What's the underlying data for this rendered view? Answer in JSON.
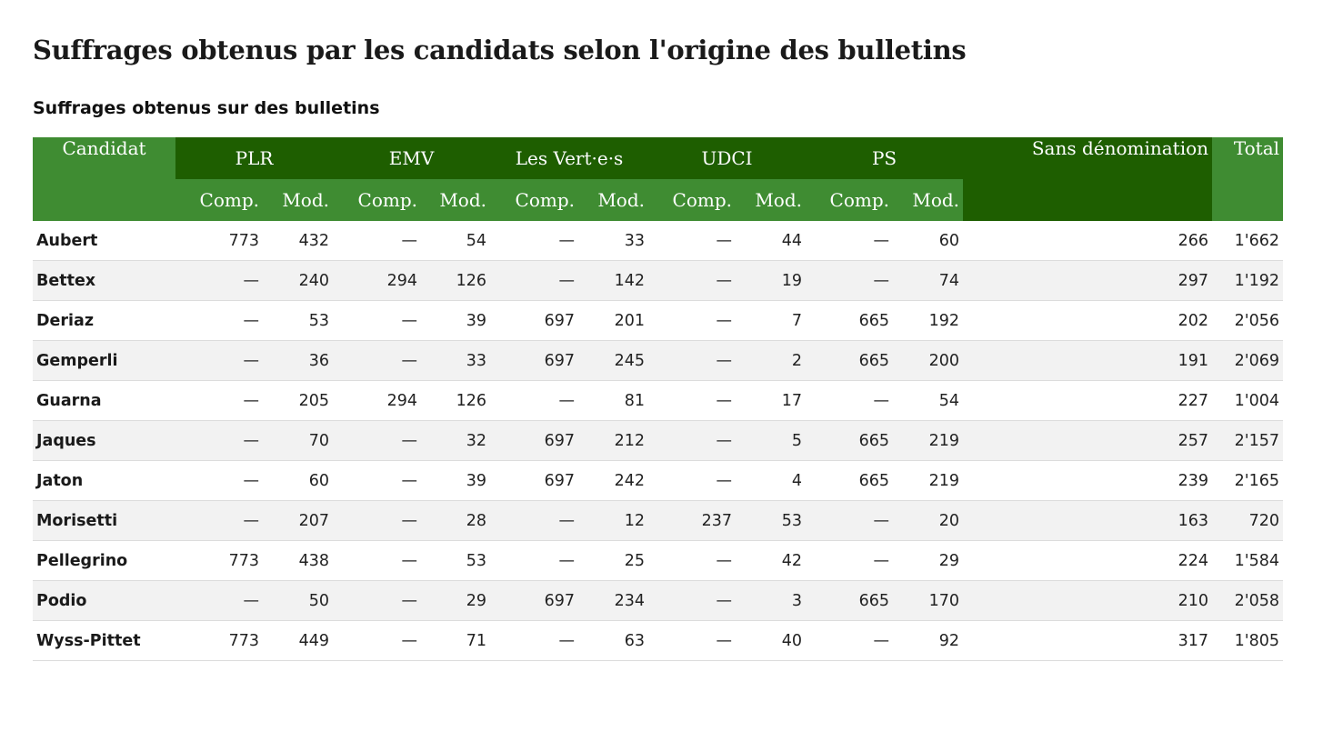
{
  "title": "Suffrages obtenus par les candidats selon l'origine des bulletins",
  "subtitle": "Suffrages obtenus sur des bulletins",
  "headers": {
    "candidat": "Candidat",
    "parties": [
      "PLR",
      "EMV",
      "Les Vert·e·s",
      "UDCI",
      "PS"
    ],
    "sans_denomination": "Sans dénomination",
    "total": "Total",
    "comp": "Comp.",
    "mod": "Mod."
  },
  "rows": [
    {
      "name": "Aubert",
      "cells": [
        "773",
        "432",
        "—",
        "54",
        "—",
        "33",
        "—",
        "44",
        "—",
        "60"
      ],
      "sans": "266",
      "total": "1'662"
    },
    {
      "name": "Bettex",
      "cells": [
        "—",
        "240",
        "294",
        "126",
        "—",
        "142",
        "—",
        "19",
        "—",
        "74"
      ],
      "sans": "297",
      "total": "1'192"
    },
    {
      "name": "Deriaz",
      "cells": [
        "—",
        "53",
        "—",
        "39",
        "697",
        "201",
        "—",
        "7",
        "665",
        "192"
      ],
      "sans": "202",
      "total": "2'056"
    },
    {
      "name": "Gemperli",
      "cells": [
        "—",
        "36",
        "—",
        "33",
        "697",
        "245",
        "—",
        "2",
        "665",
        "200"
      ],
      "sans": "191",
      "total": "2'069"
    },
    {
      "name": "Guarna",
      "cells": [
        "—",
        "205",
        "294",
        "126",
        "—",
        "81",
        "—",
        "17",
        "—",
        "54"
      ],
      "sans": "227",
      "total": "1'004"
    },
    {
      "name": "Jaques",
      "cells": [
        "—",
        "70",
        "—",
        "32",
        "697",
        "212",
        "—",
        "5",
        "665",
        "219"
      ],
      "sans": "257",
      "total": "2'157"
    },
    {
      "name": "Jaton",
      "cells": [
        "—",
        "60",
        "—",
        "39",
        "697",
        "242",
        "—",
        "4",
        "665",
        "219"
      ],
      "sans": "239",
      "total": "2'165"
    },
    {
      "name": "Morisetti",
      "cells": [
        "—",
        "207",
        "—",
        "28",
        "—",
        "12",
        "237",
        "53",
        "—",
        "20"
      ],
      "sans": "163",
      "total": "720"
    },
    {
      "name": "Pellegrino",
      "cells": [
        "773",
        "438",
        "—",
        "53",
        "—",
        "25",
        "—",
        "42",
        "—",
        "29"
      ],
      "sans": "224",
      "total": "1'584"
    },
    {
      "name": "Podio",
      "cells": [
        "—",
        "50",
        "—",
        "29",
        "697",
        "234",
        "—",
        "3",
        "665",
        "170"
      ],
      "sans": "210",
      "total": "2'058"
    },
    {
      "name": "Wyss-Pittet",
      "cells": [
        "773",
        "449",
        "—",
        "71",
        "—",
        "63",
        "—",
        "40",
        "—",
        "92"
      ],
      "sans": "317",
      "total": "1'805"
    }
  ]
}
